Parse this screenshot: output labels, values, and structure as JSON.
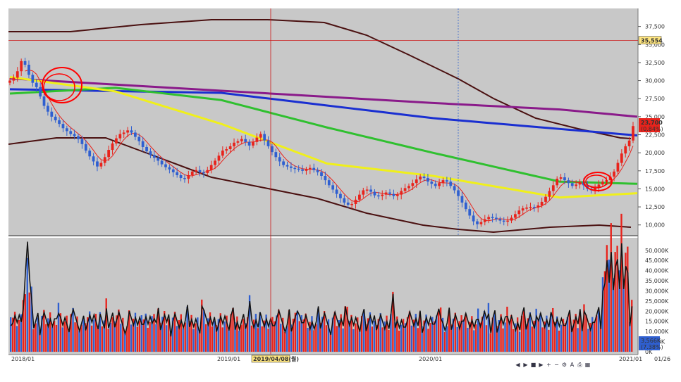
{
  "chart_data": [
    {
      "type": "candlestick",
      "title": "",
      "y_ticks": [
        "37,500",
        "35,000",
        "32,500",
        "30,000",
        "27,500",
        "25,000",
        "22,500",
        "20,000",
        "17,500",
        "15,000",
        "12,500",
        "10,000"
      ],
      "ylim": [
        9000,
        40000
      ],
      "x_ticks": [
        "2018/01",
        "2019/01",
        "2020/01",
        "2021/01",
        "01/26"
      ],
      "crosshair": {
        "date": "2019/04/08(월)",
        "price": "35,554"
      },
      "last_price": {
        "value": "23,700",
        "change": "(0.84%)"
      },
      "price": [
        30000,
        30400,
        31300,
        32700,
        32200,
        30800,
        29700,
        29100,
        27800,
        26500,
        25700,
        25000,
        24500,
        24000,
        23400,
        23000,
        22600,
        22300,
        21900,
        21200,
        20300,
        19500,
        18800,
        18100,
        18600,
        19400,
        20400,
        21300,
        22000,
        22600,
        22800,
        23100,
        22800,
        22200,
        21600,
        20800,
        20200,
        19700,
        19300,
        18900,
        18400,
        18000,
        17700,
        17300,
        16900,
        16500,
        16400,
        16900,
        17400,
        17600,
        17300,
        17200,
        17600,
        18300,
        18900,
        19600,
        20300,
        20500,
        20900,
        21400,
        21600,
        21900,
        21500,
        21000,
        21500,
        22100,
        22600,
        21700,
        20900,
        20100,
        19400,
        18800,
        18300,
        18100,
        17900,
        17800,
        17700,
        17500,
        17700,
        17900,
        17600,
        17300,
        16800,
        16200,
        15500,
        14900,
        14300,
        13700,
        13100,
        12800,
        12900,
        13500,
        14200,
        14800,
        14900,
        14600,
        14100,
        14000,
        14200,
        14500,
        14300,
        14000,
        14200,
        14700,
        15100,
        15400,
        15800,
        16300,
        16700,
        16500,
        16000,
        15700,
        15400,
        15800,
        16200,
        16000,
        15400,
        14800,
        14000,
        13100,
        12200,
        11300,
        10500,
        10100,
        10400,
        10800,
        11100,
        11000,
        10800,
        10600,
        10500,
        10600,
        11000,
        11500,
        12000,
        12300,
        12400,
        12500,
        12400,
        12700,
        13200,
        13900,
        14700,
        15500,
        16400,
        16600,
        16200,
        15800,
        15400,
        15600,
        16000,
        15500,
        15000,
        14800,
        15200,
        15600,
        16000,
        16200,
        16700,
        17400,
        18600,
        19900,
        20900,
        21700,
        23700
      ],
      "series": [
        {
          "name": "",
          "color": "#8a1a8a",
          "values": [
            [
              0,
              30300
            ],
            [
              300,
              28600
            ],
            [
              600,
              26900
            ],
            [
              780,
              26000
            ],
            [
              890,
              25000
            ]
          ]
        },
        {
          "name": "",
          "color": "#1a2fd1",
          "values": [
            [
              0,
              28800
            ],
            [
              300,
              28300
            ],
            [
              600,
              24800
            ],
            [
              780,
              23300
            ],
            [
              890,
              22400
            ]
          ]
        },
        {
          "name": "",
          "color": "#2fc02f",
          "values": [
            [
              0,
              28200
            ],
            [
              150,
              29000
            ],
            [
              300,
              27300
            ],
            [
              450,
              23500
            ],
            [
              600,
              20000
            ],
            [
              780,
              16000
            ],
            [
              890,
              15700
            ]
          ]
        },
        {
          "name": "",
          "color": "#f0f01a",
          "values": [
            [
              0,
              30500
            ],
            [
              150,
              28500
            ],
            [
              300,
              24000
            ],
            [
              450,
              18500
            ],
            [
              600,
              16800
            ],
            [
              780,
              13800
            ],
            [
              890,
              14400
            ]
          ]
        }
      ],
      "volume_ticks": [
        "50,000K",
        "45,000K",
        "40,000K",
        "35,000K",
        "30,000K",
        "25,000K",
        "20,000K",
        "15,000K",
        "10,000K",
        "5,000K",
        "0K"
      ],
      "volume_label": {
        "value": "3,566K",
        "change": "(7.38%)"
      }
    }
  ],
  "colors": {
    "up": "#e8231c",
    "down": "#2f5fd0",
    "bg": "#c8c8c8",
    "bb": "#4a1010",
    "ma_short": "#e8231c",
    "annotation": "#ff0000"
  },
  "toolbar_icons": [
    "prev-icon",
    "play-icon",
    "stop-icon",
    "next-icon",
    "zoom-in-icon",
    "zoom-out-icon",
    "settings-icon",
    "text-icon",
    "print-icon",
    "grid-icon"
  ]
}
